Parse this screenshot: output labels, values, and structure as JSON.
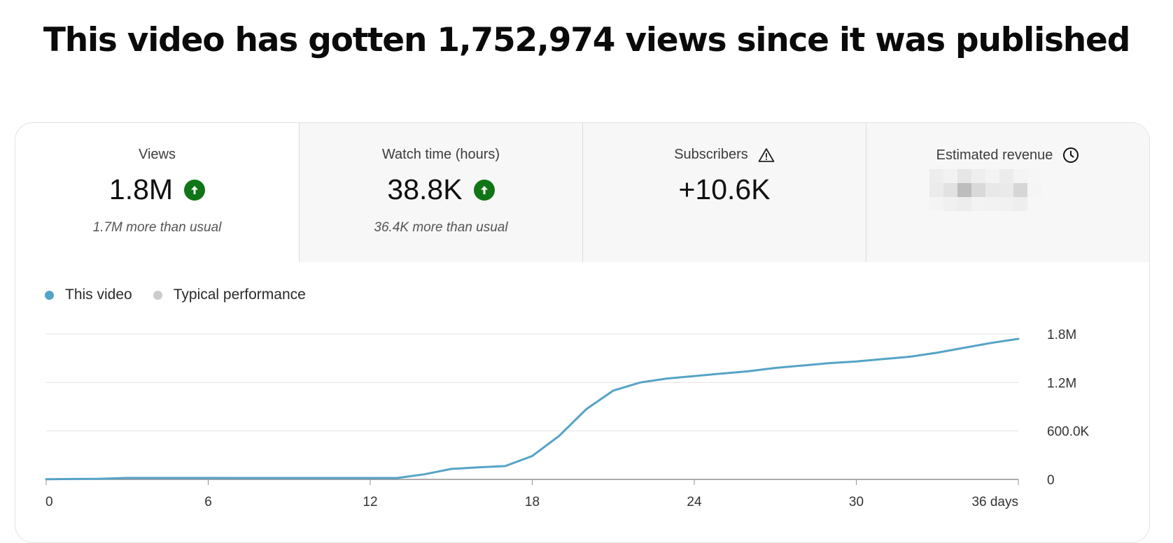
{
  "headline": "This video has gotten 1,752,974 views since it was published",
  "metrics": [
    {
      "label": "Views",
      "value": "1.8M",
      "sub": "1.7M more than usual",
      "trend": "up"
    },
    {
      "label": "Watch time (hours)",
      "value": "38.8K",
      "sub": "36.4K more than usual",
      "trend": "up"
    },
    {
      "label": "Subscribers",
      "value": "+10.6K",
      "sub": "",
      "icon": "warning-icon"
    },
    {
      "label": "Estimated revenue",
      "value": "",
      "sub": "",
      "icon": "clock-icon",
      "redacted": true
    }
  ],
  "colors": {
    "series": "#55a3c7",
    "typical": "#cccccc",
    "up": "#107516"
  },
  "chart_data": {
    "type": "line",
    "legend": [
      "This video",
      "Typical performance"
    ],
    "xlabel": "",
    "ylabel": "",
    "xlim": [
      0,
      36
    ],
    "ylim": [
      0,
      1800000
    ],
    "x_ticks": [
      {
        "v": 0,
        "label": "0"
      },
      {
        "v": 6,
        "label": "6"
      },
      {
        "v": 12,
        "label": "12"
      },
      {
        "v": 18,
        "label": "18"
      },
      {
        "v": 24,
        "label": "24"
      },
      {
        "v": 30,
        "label": "30"
      },
      {
        "v": 36,
        "label": "36 days"
      }
    ],
    "y_ticks": [
      {
        "v": 0,
        "label": "0"
      },
      {
        "v": 600000,
        "label": "600.0K"
      },
      {
        "v": 1200000,
        "label": "1.2M"
      },
      {
        "v": 1800000,
        "label": "1.8M"
      }
    ],
    "series": [
      {
        "name": "This video",
        "x": [
          0,
          1,
          2,
          3,
          4,
          5,
          6,
          7,
          8,
          9,
          10,
          11,
          12,
          13,
          14,
          15,
          16,
          17,
          18,
          19,
          20,
          21,
          22,
          23,
          24,
          25,
          26,
          27,
          28,
          29,
          30,
          31,
          32,
          33,
          34,
          35,
          36
        ],
        "values": [
          3000,
          5000,
          8000,
          18000,
          18000,
          18000,
          18000,
          17000,
          17000,
          17000,
          17000,
          17000,
          17000,
          17000,
          63000,
          130000,
          150000,
          165000,
          290000,
          540000,
          870000,
          1100000,
          1200000,
          1250000,
          1280000,
          1310000,
          1340000,
          1380000,
          1410000,
          1440000,
          1460000,
          1490000,
          1520000,
          1570000,
          1630000,
          1690000,
          1740000
        ]
      }
    ]
  }
}
